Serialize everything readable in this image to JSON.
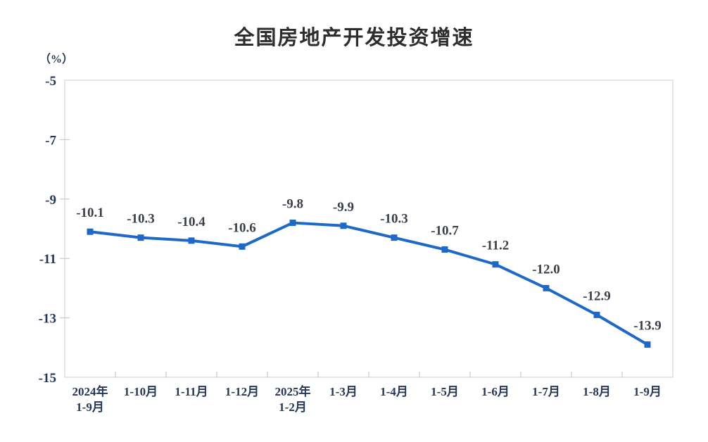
{
  "title": "全国房地产开发投资增速",
  "colors": {
    "line": "#1E69C8",
    "marker": "#1E69C8",
    "plot_border": "#d9d9d9",
    "tick_mark": "#c9c9c9",
    "tick_label": "#253757",
    "data_label": "#3a3f48",
    "title_color": "#2d2d2d",
    "background": "#ffffff"
  },
  "chart_data": {
    "type": "line",
    "title": "全国房地产开发投资增速",
    "ylabel": "（%）",
    "xlabel": "",
    "categories": [
      "2024年\n1-9月",
      "1-10月",
      "1-11月",
      "1-12月",
      "2025年\n1-2月",
      "1-3月",
      "1-4月",
      "1-5月",
      "1-6月",
      "1-7月",
      "1-8月",
      "1-9月"
    ],
    "values": [
      -10.1,
      -10.3,
      -10.4,
      -10.6,
      -9.8,
      -9.9,
      -10.3,
      -10.7,
      -11.2,
      -12.0,
      -12.9,
      -13.9
    ],
    "data_labels": [
      "-10.1",
      "-10.3",
      "-10.4",
      "-10.6",
      "-9.8",
      "-9.9",
      "-10.3",
      "-10.7",
      "-11.2",
      "-12.0",
      "-12.9",
      "-13.9"
    ],
    "ylim": [
      -15,
      -5
    ],
    "y_ticks": [
      "-5",
      "-7",
      "-9",
      "-11",
      "-13",
      "-15"
    ],
    "grid": false,
    "legend": false,
    "marker": "square"
  }
}
